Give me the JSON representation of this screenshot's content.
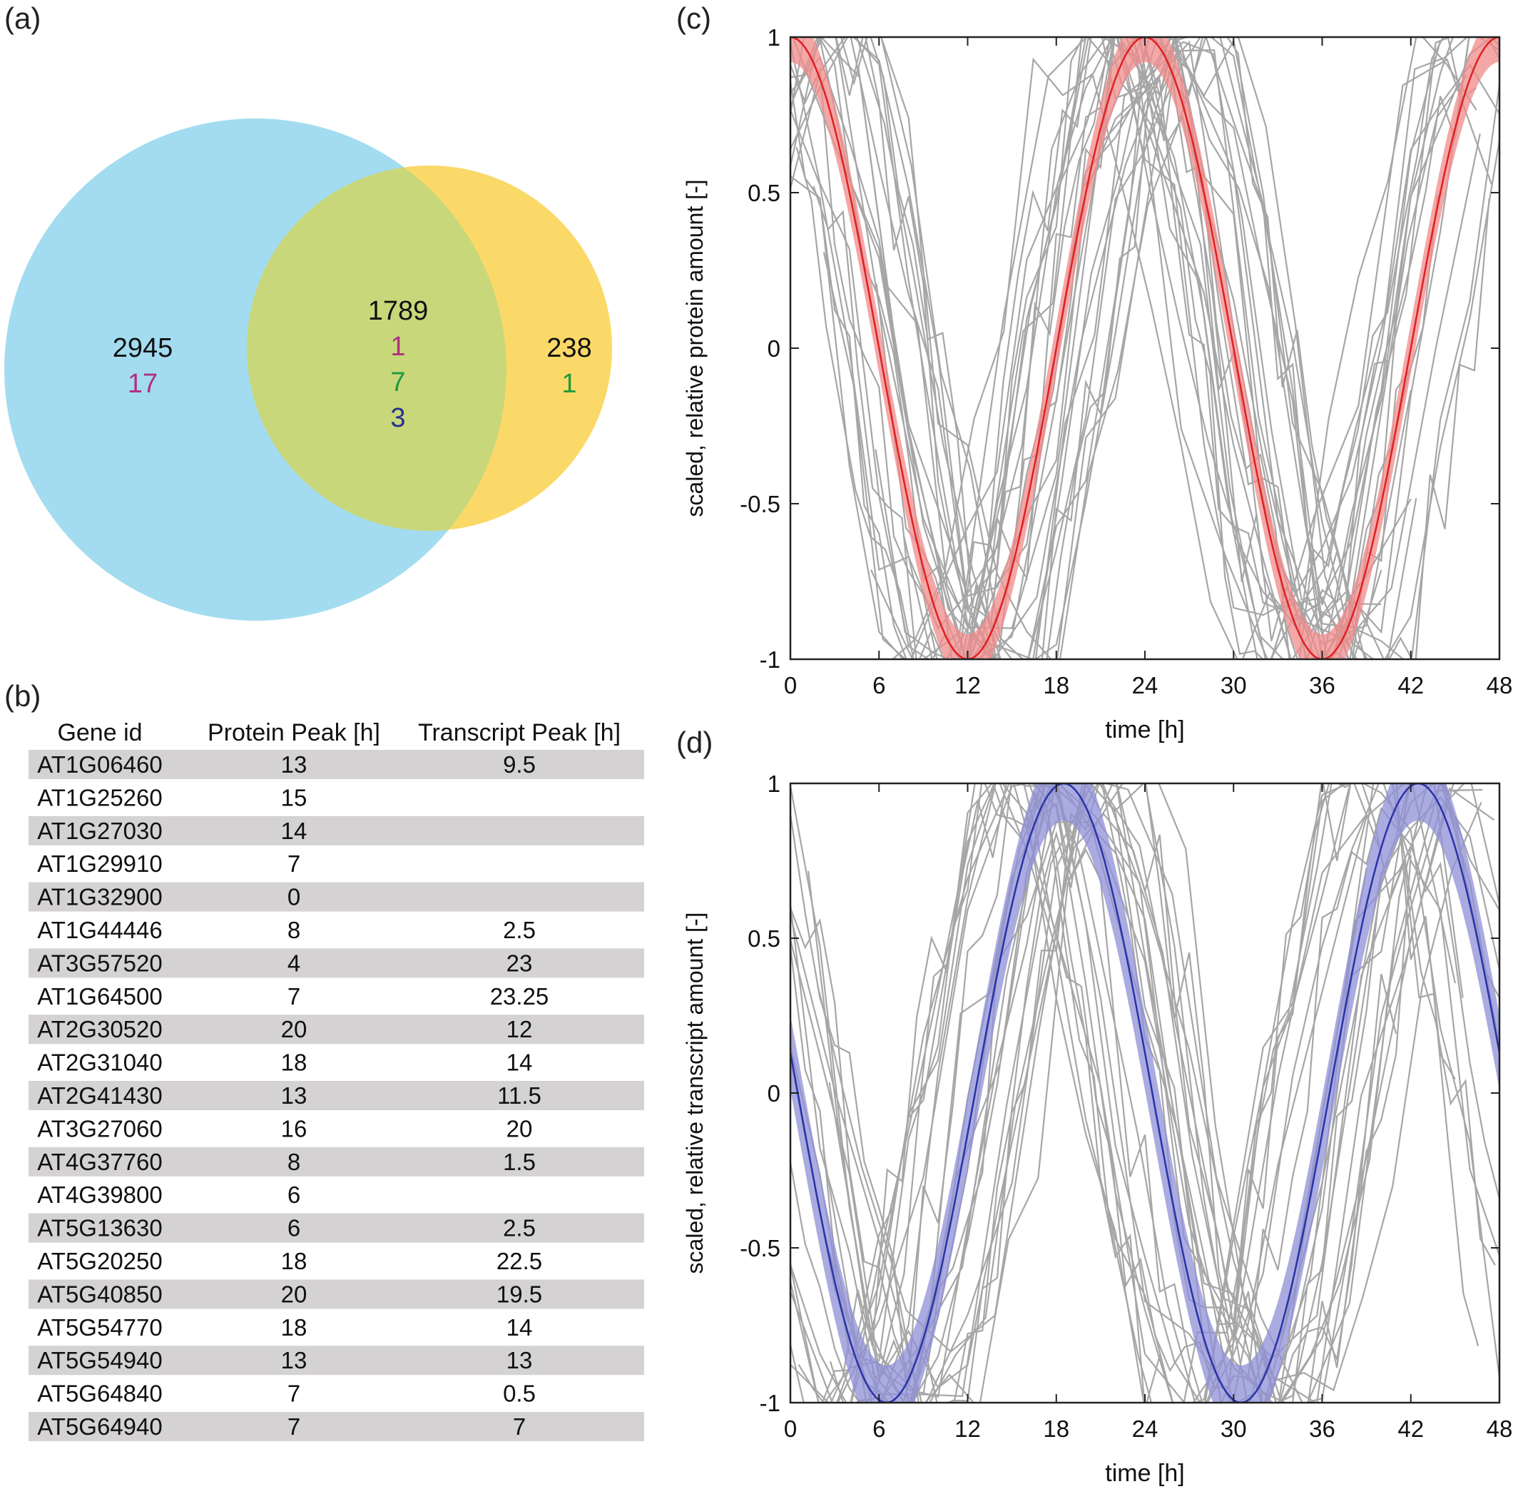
{
  "colors": {
    "blue_circle": "#a3dcf0",
    "yellow_circle": "#fbd968",
    "overlap": "#c8d77a",
    "magenta": "#b0307e",
    "green": "#1f9a3b",
    "navy": "#2a2f8f",
    "row_shade": "#d4d2d2",
    "gray_traces": "#a6a6a6",
    "red_fit": "#e02020",
    "red_band": "#f08a8a",
    "blue_fit": "#2a33a8",
    "blue_band": "#8d8fd6"
  },
  "panels": {
    "a": "(a)",
    "b": "(b)",
    "c": "(c)",
    "d": "(d)"
  },
  "venn": {
    "left_only": [
      "2945",
      "17"
    ],
    "both": [
      "1789",
      "1",
      "7",
      "3"
    ],
    "right_only": [
      "238",
      "1"
    ]
  },
  "table": {
    "headers": [
      "Gene id",
      "Protein Peak [h]",
      "Transcript Peak [h]"
    ],
    "rows": [
      [
        "AT1G06460",
        "13",
        "9.5"
      ],
      [
        "AT1G25260",
        "15",
        ""
      ],
      [
        "AT1G27030",
        "14",
        ""
      ],
      [
        "AT1G29910",
        "7",
        ""
      ],
      [
        "AT1G32900",
        "0",
        ""
      ],
      [
        "AT1G44446",
        "8",
        "2.5"
      ],
      [
        "AT3G57520",
        "4",
        "23"
      ],
      [
        "AT1G64500",
        "7",
        "23.25"
      ],
      [
        "AT2G30520",
        "20",
        "12"
      ],
      [
        "AT2G31040",
        "18",
        "14"
      ],
      [
        "AT2G41430",
        "13",
        "11.5"
      ],
      [
        "AT3G27060",
        "16",
        "20"
      ],
      [
        "AT4G37760",
        "8",
        "1.5"
      ],
      [
        "AT4G39800",
        "6",
        ""
      ],
      [
        "AT5G13630",
        "6",
        "2.5"
      ],
      [
        "AT5G20250",
        "18",
        "22.5"
      ],
      [
        "AT5G40850",
        "20",
        "19.5"
      ],
      [
        "AT5G54770",
        "18",
        "14"
      ],
      [
        "AT5G54940",
        "13",
        "13"
      ],
      [
        "AT5G64840",
        "7",
        "0.5"
      ],
      [
        "AT5G64940",
        "7",
        "7"
      ]
    ]
  },
  "chart_data": [
    {
      "panel": "c",
      "type": "line",
      "xlabel": "time [h]",
      "ylabel": "scaled, relative protein amount [-]",
      "xlim": [
        0,
        48
      ],
      "ylim": [
        -1,
        1
      ],
      "xticks": [
        "0",
        "6",
        "12",
        "18",
        "24",
        "30",
        "36",
        "42",
        "48"
      ],
      "yticks": [
        "-1",
        "-0.5",
        "0",
        "0.5",
        "1"
      ],
      "fit": {
        "period_h": 24,
        "peak_h": 0,
        "band_width": 0.08
      },
      "gray_traces_count": 28
    },
    {
      "panel": "d",
      "type": "line",
      "xlabel": "time [h]",
      "ylabel": "scaled, relative transcript amount [-]",
      "xlim": [
        0,
        48
      ],
      "ylim": [
        -1,
        1
      ],
      "xticks": [
        "0",
        "6",
        "12",
        "18",
        "24",
        "30",
        "36",
        "42",
        "48"
      ],
      "yticks": [
        "-1",
        "-0.5",
        "0",
        "0.5",
        "1"
      ],
      "fit": {
        "period_h": 24,
        "peak_h": 18.5,
        "band_width": 0.12
      },
      "gray_traces_count": 26
    }
  ]
}
